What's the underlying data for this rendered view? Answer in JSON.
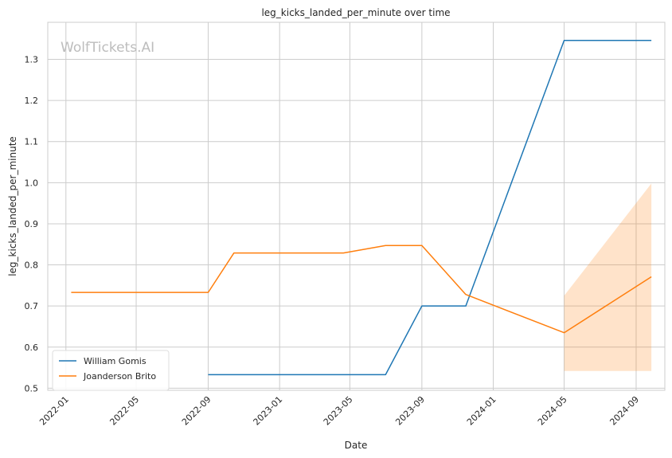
{
  "chart_data": {
    "type": "line",
    "title": "leg_kicks_landed_per_minute over time",
    "xlabel": "Date",
    "ylabel": "leg_kicks_landed_per_minute",
    "watermark": "WolfTickets.AI",
    "xlim": [
      "2021-12-01",
      "2024-10-20"
    ],
    "ylim": [
      0.495,
      1.39
    ],
    "x_ticks": [
      "2022-01-01",
      "2022-05-01",
      "2022-09-01",
      "2023-01-01",
      "2023-05-01",
      "2023-09-01",
      "2024-01-01",
      "2024-05-01",
      "2024-09-01"
    ],
    "x_tick_labels": [
      "2022-01",
      "2022-05",
      "2022-09",
      "2023-01",
      "2023-05",
      "2023-09",
      "2024-01",
      "2024-05",
      "2024-09"
    ],
    "y_ticks": [
      0.5,
      0.6,
      0.7,
      0.8,
      0.9,
      1.0,
      1.1,
      1.2,
      1.3
    ],
    "y_tick_labels": [
      "0.5",
      "0.6",
      "0.7",
      "0.8",
      "0.9",
      "1.0",
      "1.1",
      "1.2",
      "1.3"
    ],
    "grid": true,
    "legend_position": "lower-left",
    "series": [
      {
        "name": "William Gomis",
        "color": "#1f77b4",
        "points": [
          {
            "x": "2022-09-01",
            "y": 0.533
          },
          {
            "x": "2023-07-01",
            "y": 0.533
          },
          {
            "x": "2023-09-01",
            "y": 0.7
          },
          {
            "x": "2023-11-15",
            "y": 0.7
          },
          {
            "x": "2024-05-01",
            "y": 1.346
          },
          {
            "x": "2024-09-27",
            "y": 1.346
          }
        ]
      },
      {
        "name": "Joanderson Brito",
        "color": "#ff7f0e",
        "points": [
          {
            "x": "2022-01-10",
            "y": 0.733
          },
          {
            "x": "2022-09-01",
            "y": 0.733
          },
          {
            "x": "2022-10-15",
            "y": 0.829
          },
          {
            "x": "2023-04-20",
            "y": 0.829
          },
          {
            "x": "2023-07-01",
            "y": 0.847
          },
          {
            "x": "2023-09-01",
            "y": 0.847
          },
          {
            "x": "2023-11-15",
            "y": 0.728
          },
          {
            "x": "2024-05-01",
            "y": 0.635
          },
          {
            "x": "2024-09-27",
            "y": 0.771
          }
        ],
        "band": [
          {
            "x": "2024-05-01",
            "low": 0.542,
            "high": 0.725
          },
          {
            "x": "2024-09-27",
            "low": 0.542,
            "high": 0.998
          }
        ]
      }
    ]
  }
}
